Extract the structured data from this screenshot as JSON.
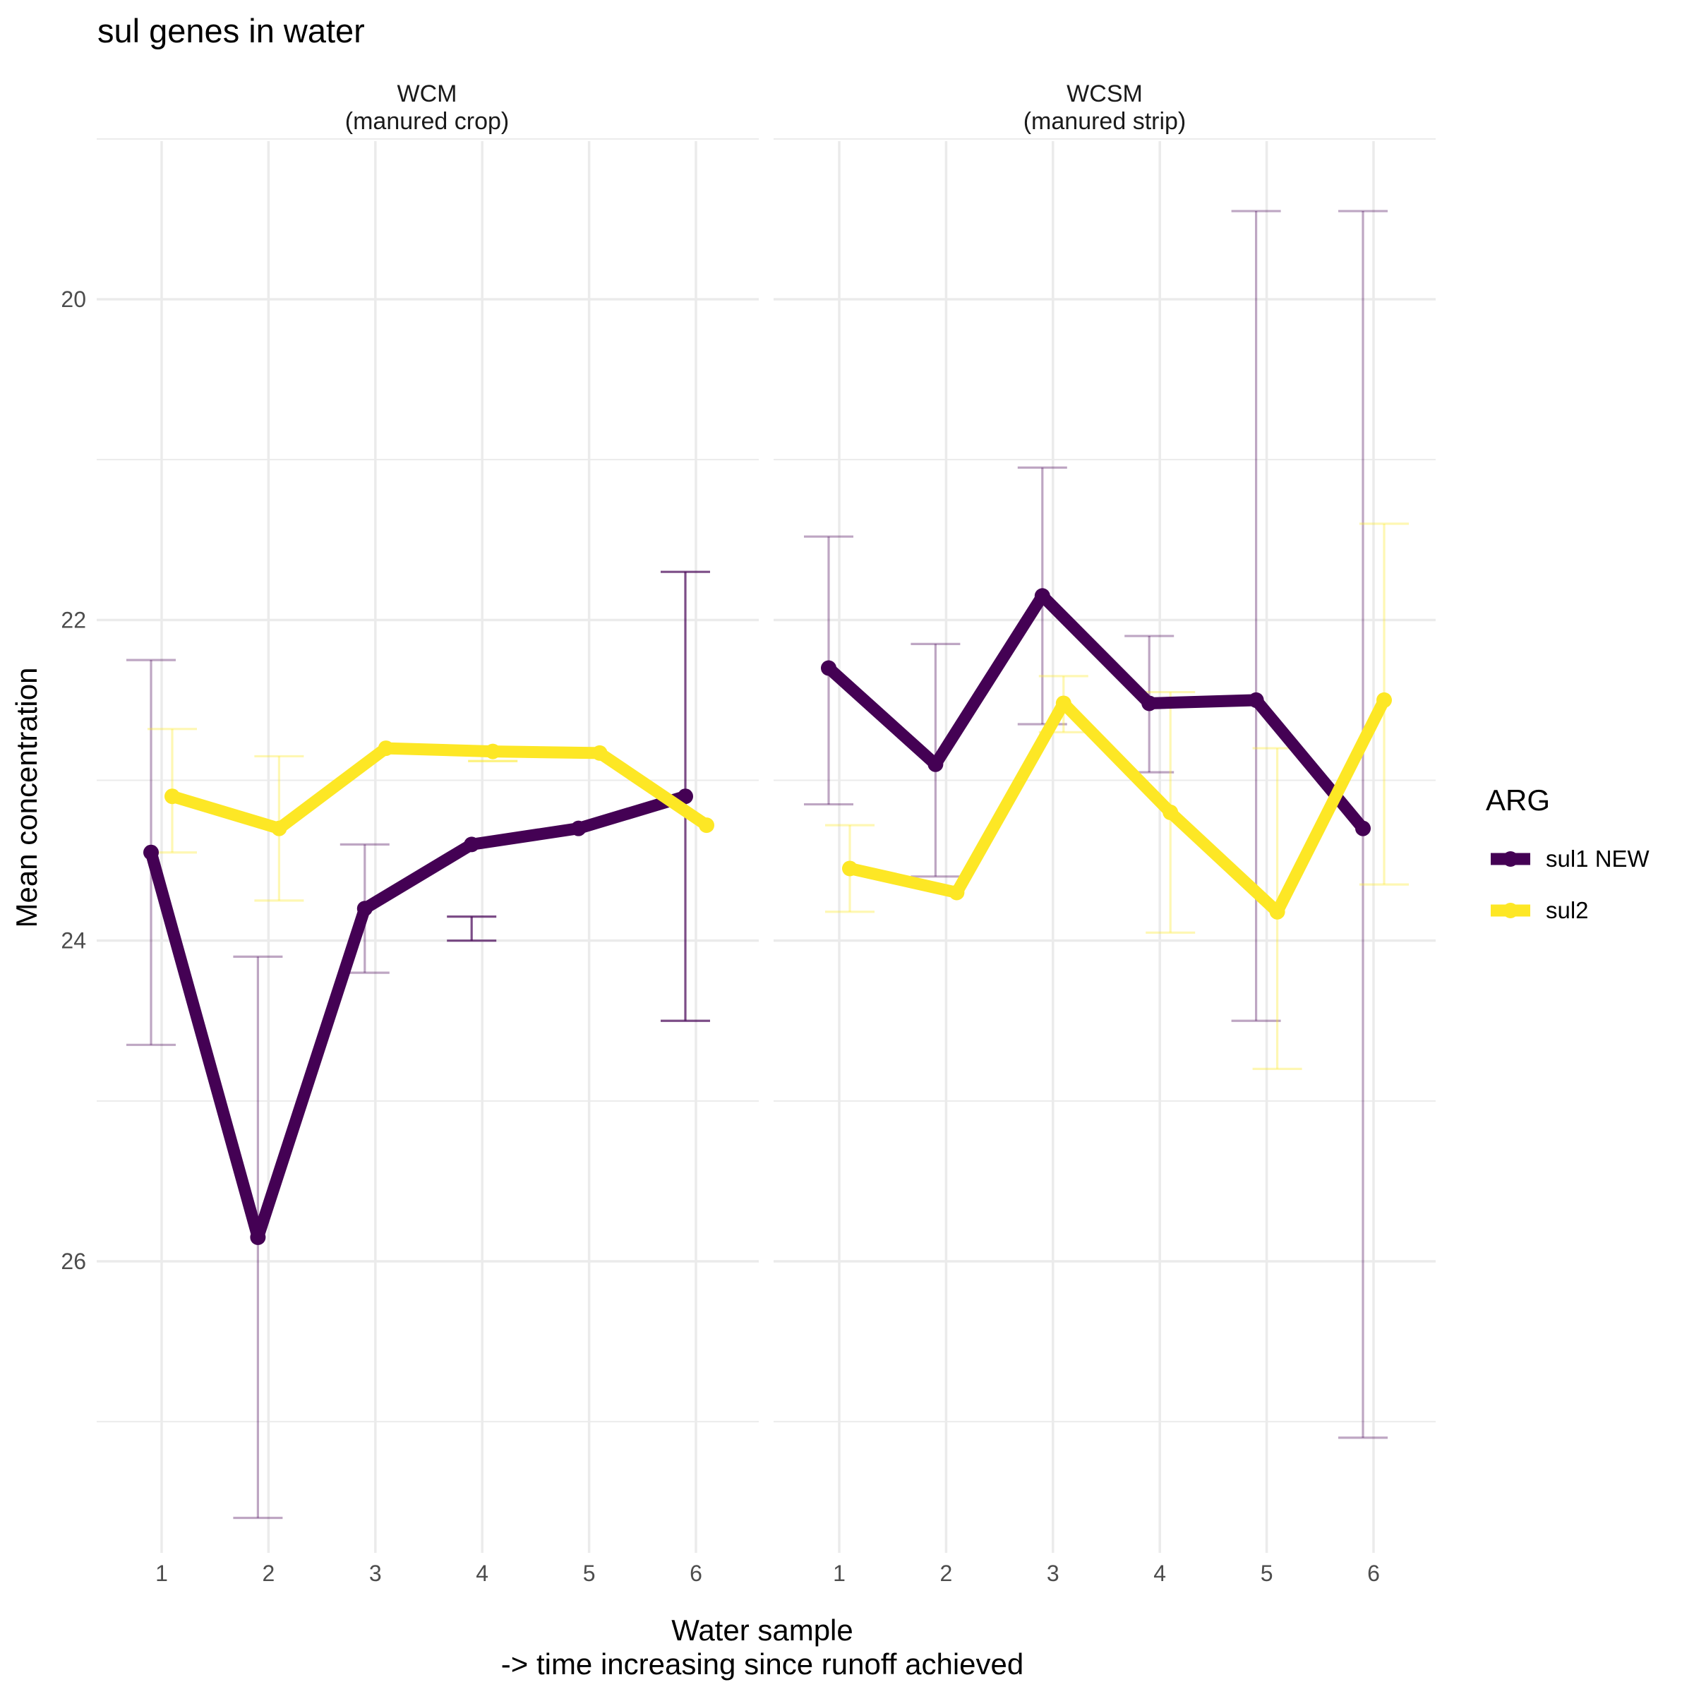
{
  "chart_data": {
    "type": "line",
    "title": "sul genes in water",
    "xlabel": "Water sample",
    "xlabel_line2": "-> time increasing since runoff achieved",
    "ylabel": "Mean concentration",
    "y_reversed": true,
    "ylim": [
      27.9,
      18.8
    ],
    "yticks": [
      20,
      22,
      24,
      26
    ],
    "x": [
      1,
      2,
      3,
      4,
      5,
      6
    ],
    "grid": true,
    "legend": {
      "title": "ARG",
      "placement": "right"
    },
    "panels": [
      {
        "label_line1": "WCM",
        "label_line2": "(manured crop)",
        "series": [
          {
            "name": "sul1 NEW",
            "color": "#440154",
            "values": [
              23.45,
              25.85,
              23.8,
              23.4,
              23.3,
              23.1
            ],
            "error_low": [
              22.25,
              24.1,
              23.4,
              23.85,
              null,
              21.7
            ],
            "error_high": [
              24.65,
              27.6,
              24.2,
              24.0,
              null,
              24.5
            ]
          },
          {
            "name": "sul2",
            "color": "#FDE725",
            "values": [
              23.1,
              23.3,
              22.8,
              22.82,
              22.83,
              23.28
            ],
            "error_low": [
              22.68,
              22.85,
              null,
              22.88,
              null,
              null
            ],
            "error_high": [
              23.45,
              23.75,
              null,
              22.88,
              null,
              null
            ]
          }
        ]
      },
      {
        "label_line1": "WCSM",
        "label_line2": "(manured strip)",
        "series": [
          {
            "name": "sul1 NEW",
            "color": "#440154",
            "values": [
              22.3,
              22.9,
              21.85,
              22.52,
              22.5,
              23.3
            ],
            "error_low": [
              21.48,
              22.15,
              21.05,
              22.1,
              19.45,
              19.45
            ],
            "error_high": [
              23.15,
              23.6,
              22.65,
              22.95,
              24.5,
              27.1
            ]
          },
          {
            "name": "sul2",
            "color": "#FDE725",
            "values": [
              23.55,
              23.7,
              22.52,
              23.2,
              23.82,
              22.5
            ],
            "error_low": [
              23.28,
              null,
              22.35,
              22.45,
              22.8,
              21.4
            ],
            "error_high": [
              23.82,
              null,
              22.7,
              23.95,
              24.8,
              23.65
            ]
          }
        ]
      }
    ]
  }
}
